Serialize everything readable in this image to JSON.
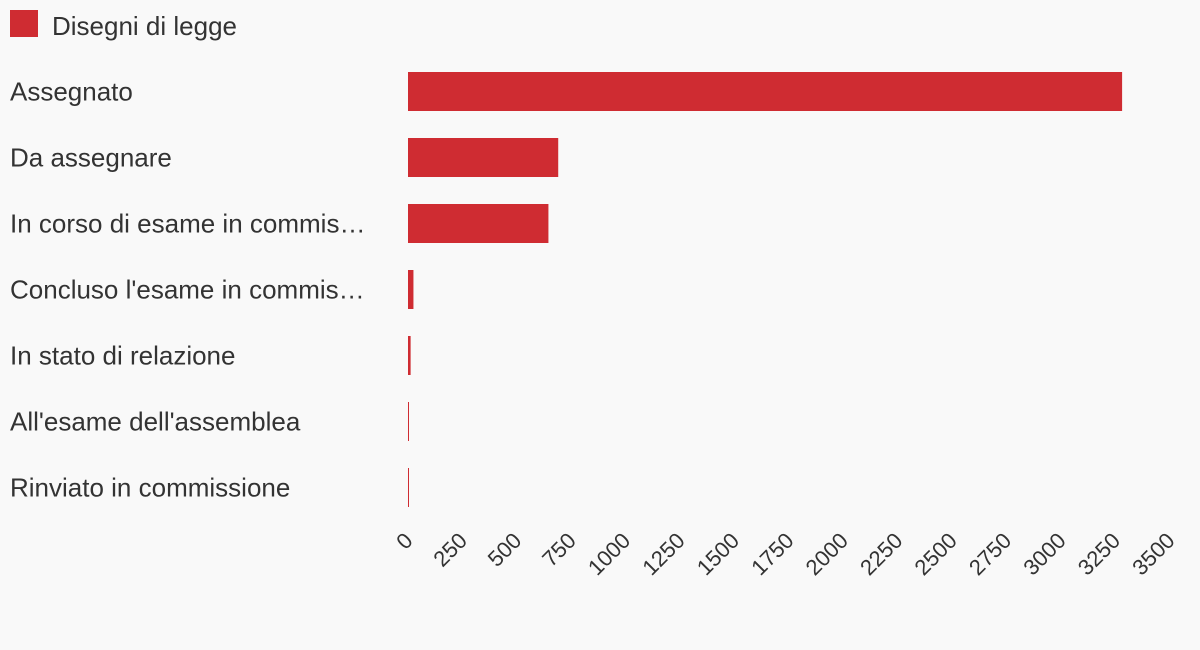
{
  "chart_data": {
    "type": "bar",
    "orientation": "horizontal",
    "legend": {
      "position": "top-left",
      "entries": [
        "Disegni di legge"
      ]
    },
    "categories": [
      "Assegnato",
      "Da assegnare",
      "In corso di esame in commis…",
      "Concluso l'esame in commis…",
      "In stato di relazione",
      "All'esame dell'assemblea",
      "Rinviato in commissione"
    ],
    "series": [
      {
        "name": "Disegni di legge",
        "color": "#cf2c32",
        "values": [
          3280,
          690,
          645,
          25,
          12,
          3,
          2
        ]
      }
    ],
    "xlim": [
      0,
      3500
    ],
    "xticks": [
      0,
      250,
      500,
      750,
      1000,
      1250,
      1500,
      1750,
      2000,
      2250,
      2500,
      2750,
      3000,
      3250,
      3500
    ],
    "grid": false
  }
}
